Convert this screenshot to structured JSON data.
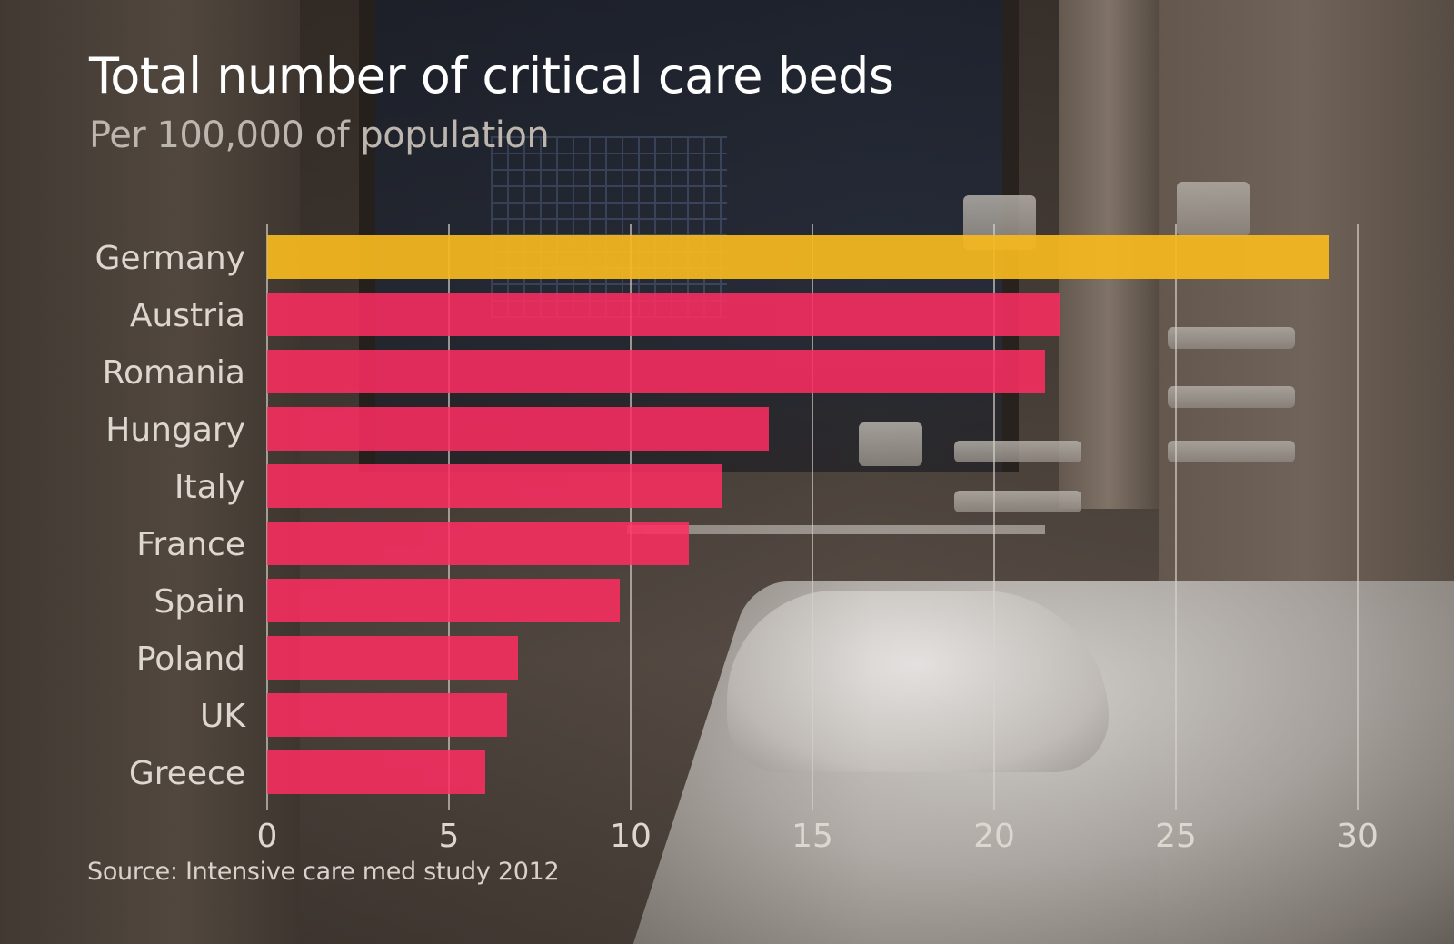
{
  "chart_data": {
    "type": "bar",
    "orientation": "horizontal",
    "title": "Total number of critical care beds",
    "subtitle": "Per 100,000 of population",
    "source": "Source: Intensive care med study 2012",
    "categories": [
      "Germany",
      "Austria",
      "Romania",
      "Hungary",
      "Italy",
      "France",
      "Spain",
      "Poland",
      "UK",
      "Greece"
    ],
    "values": [
      29.2,
      21.8,
      21.4,
      13.8,
      12.5,
      11.6,
      9.7,
      6.9,
      6.6,
      6.0
    ],
    "highlight": "Germany",
    "xlim": [
      0,
      30
    ],
    "xticks": [
      0,
      5,
      10,
      15,
      20,
      25,
      30
    ],
    "grid": true,
    "colors": {
      "highlight": "#f5b81f",
      "bar": "#ff2d62",
      "grid": "#d9d3cc",
      "text": "#ddd7d0"
    }
  }
}
